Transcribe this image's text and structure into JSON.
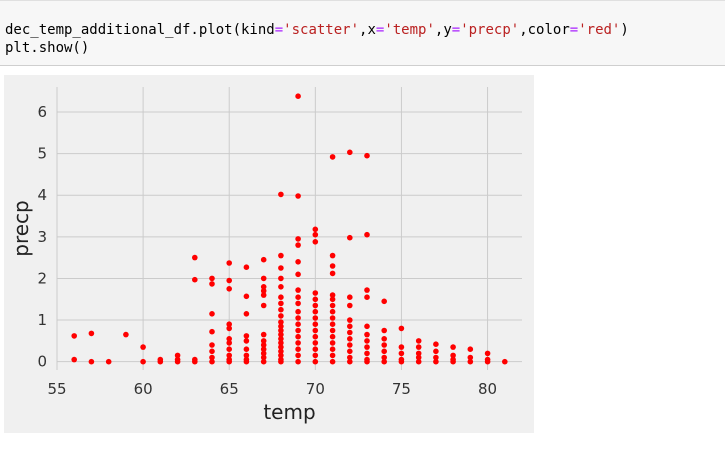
{
  "code_cell": {
    "line1_parts": [
      {
        "text": "dec_temp_additional_df.plot(kind",
        "cls": ""
      },
      {
        "text": "=",
        "cls": "op"
      },
      {
        "text": "'scatter'",
        "cls": "str"
      },
      {
        "text": ",x",
        "cls": ""
      },
      {
        "text": "=",
        "cls": "op"
      },
      {
        "text": "'temp'",
        "cls": "str"
      },
      {
        "text": ",y",
        "cls": ""
      },
      {
        "text": "=",
        "cls": "op"
      },
      {
        "text": "'precp'",
        "cls": "str"
      },
      {
        "text": ",color",
        "cls": ""
      },
      {
        "text": "=",
        "cls": "op"
      },
      {
        "text": "'red'",
        "cls": "str"
      },
      {
        "text": ")",
        "cls": ""
      }
    ],
    "line2": "plt.show()"
  },
  "colors": {
    "point": "#ff0000",
    "plot_bg": "#f0f0f0",
    "grid": "#cbcbcb"
  },
  "chart_data": {
    "type": "scatter",
    "title": "",
    "xlabel": "temp",
    "ylabel": "precp",
    "xlim": [
      55,
      82
    ],
    "ylim": [
      -0.2,
      6.6
    ],
    "xticks": [
      55,
      60,
      65,
      70,
      75,
      80
    ],
    "yticks": [
      0,
      1,
      2,
      3,
      4,
      5,
      6
    ],
    "grid": true,
    "legend": "none",
    "series": [
      {
        "points": [
          [
            56,
            0.62
          ],
          [
            56,
            0.05
          ],
          [
            57,
            0.68
          ],
          [
            57,
            0.0
          ],
          [
            58,
            0.0
          ],
          [
            59,
            0.65
          ],
          [
            60,
            0.35
          ],
          [
            60,
            0.0
          ],
          [
            61,
            0.05
          ],
          [
            61,
            0.0
          ],
          [
            62,
            0.15
          ],
          [
            62,
            0.05
          ],
          [
            62,
            0.0
          ],
          [
            63,
            2.5
          ],
          [
            63,
            1.97
          ],
          [
            63,
            0.05
          ],
          [
            63,
            0.0
          ],
          [
            64,
            2.0
          ],
          [
            64,
            1.87
          ],
          [
            64,
            1.15
          ],
          [
            64,
            0.72
          ],
          [
            64,
            0.4
          ],
          [
            64,
            0.25
          ],
          [
            64,
            0.1
          ],
          [
            64,
            0.0
          ],
          [
            65,
            2.37
          ],
          [
            65,
            1.95
          ],
          [
            65,
            1.75
          ],
          [
            65,
            0.9
          ],
          [
            65,
            0.8
          ],
          [
            65,
            0.55
          ],
          [
            65,
            0.45
          ],
          [
            65,
            0.3
          ],
          [
            65,
            0.15
          ],
          [
            65,
            0.05
          ],
          [
            65,
            0.0
          ],
          [
            66,
            2.27
          ],
          [
            66,
            1.57
          ],
          [
            66,
            1.15
          ],
          [
            66,
            0.62
          ],
          [
            66,
            0.5
          ],
          [
            66,
            0.3
          ],
          [
            66,
            0.15
          ],
          [
            66,
            0.05
          ],
          [
            66,
            0.0
          ],
          [
            67,
            2.45
          ],
          [
            67,
            2.0
          ],
          [
            67,
            1.8
          ],
          [
            67,
            1.7
          ],
          [
            67,
            1.6
          ],
          [
            67,
            1.35
          ],
          [
            67,
            0.65
          ],
          [
            67,
            0.5
          ],
          [
            67,
            0.4
          ],
          [
            67,
            0.3
          ],
          [
            67,
            0.2
          ],
          [
            67,
            0.1
          ],
          [
            67,
            0.0
          ],
          [
            68,
            4.02
          ],
          [
            68,
            2.55
          ],
          [
            68,
            2.25
          ],
          [
            68,
            2.0
          ],
          [
            68,
            1.8
          ],
          [
            68,
            1.55
          ],
          [
            68,
            1.4
          ],
          [
            68,
            1.25
          ],
          [
            68,
            1.1
          ],
          [
            68,
            0.95
          ],
          [
            68,
            0.85
          ],
          [
            68,
            0.75
          ],
          [
            68,
            0.65
          ],
          [
            68,
            0.55
          ],
          [
            68,
            0.45
          ],
          [
            68,
            0.35
          ],
          [
            68,
            0.25
          ],
          [
            68,
            0.15
          ],
          [
            68,
            0.05
          ],
          [
            68,
            0.0
          ],
          [
            69,
            6.38
          ],
          [
            69,
            3.98
          ],
          [
            69,
            2.95
          ],
          [
            69,
            2.8
          ],
          [
            69,
            2.4
          ],
          [
            69,
            2.1
          ],
          [
            69,
            1.72
          ],
          [
            69,
            1.55
          ],
          [
            69,
            1.4
          ],
          [
            69,
            1.2
          ],
          [
            69,
            1.05
          ],
          [
            69,
            0.9
          ],
          [
            69,
            0.75
          ],
          [
            69,
            0.6
          ],
          [
            69,
            0.45
          ],
          [
            69,
            0.3
          ],
          [
            69,
            0.15
          ],
          [
            69,
            0.0
          ],
          [
            70,
            3.18
          ],
          [
            70,
            3.05
          ],
          [
            70,
            2.88
          ],
          [
            70,
            1.65
          ],
          [
            70,
            1.5
          ],
          [
            70,
            1.35
          ],
          [
            70,
            1.2
          ],
          [
            70,
            1.05
          ],
          [
            70,
            0.9
          ],
          [
            70,
            0.75
          ],
          [
            70,
            0.6
          ],
          [
            70,
            0.45
          ],
          [
            70,
            0.3
          ],
          [
            70,
            0.15
          ],
          [
            70,
            0.0
          ],
          [
            71,
            4.92
          ],
          [
            71,
            2.55
          ],
          [
            71,
            2.3
          ],
          [
            71,
            2.12
          ],
          [
            71,
            1.6
          ],
          [
            71,
            1.5
          ],
          [
            71,
            1.35
          ],
          [
            71,
            1.2
          ],
          [
            71,
            1.05
          ],
          [
            71,
            0.9
          ],
          [
            71,
            0.75
          ],
          [
            71,
            0.6
          ],
          [
            71,
            0.45
          ],
          [
            71,
            0.3
          ],
          [
            71,
            0.15
          ],
          [
            71,
            0.0
          ],
          [
            72,
            5.03
          ],
          [
            72,
            2.98
          ],
          [
            72,
            1.55
          ],
          [
            72,
            1.35
          ],
          [
            72,
            1.0
          ],
          [
            72,
            0.85
          ],
          [
            72,
            0.7
          ],
          [
            72,
            0.55
          ],
          [
            72,
            0.4
          ],
          [
            72,
            0.25
          ],
          [
            72,
            0.1
          ],
          [
            72,
            0.0
          ],
          [
            73,
            4.95
          ],
          [
            73,
            3.05
          ],
          [
            73,
            1.72
          ],
          [
            73,
            1.55
          ],
          [
            73,
            0.85
          ],
          [
            73,
            0.65
          ],
          [
            73,
            0.5
          ],
          [
            73,
            0.35
          ],
          [
            73,
            0.2
          ],
          [
            73,
            0.05
          ],
          [
            73,
            0.0
          ],
          [
            74,
            1.45
          ],
          [
            74,
            0.75
          ],
          [
            74,
            0.55
          ],
          [
            74,
            0.4
          ],
          [
            74,
            0.25
          ],
          [
            74,
            0.1
          ],
          [
            74,
            0.0
          ],
          [
            75,
            0.8
          ],
          [
            75,
            0.35
          ],
          [
            75,
            0.2
          ],
          [
            75,
            0.05
          ],
          [
            75,
            0.0
          ],
          [
            76,
            0.5
          ],
          [
            76,
            0.35
          ],
          [
            76,
            0.2
          ],
          [
            76,
            0.1
          ],
          [
            76,
            0.0
          ],
          [
            77,
            0.42
          ],
          [
            77,
            0.25
          ],
          [
            77,
            0.1
          ],
          [
            77,
            0.0
          ],
          [
            78,
            0.35
          ],
          [
            78,
            0.15
          ],
          [
            78,
            0.05
          ],
          [
            78,
            0.0
          ],
          [
            79,
            0.3
          ],
          [
            79,
            0.1
          ],
          [
            79,
            0.0
          ],
          [
            80,
            0.2
          ],
          [
            80,
            0.05
          ],
          [
            80,
            0.0
          ],
          [
            81,
            0.0
          ]
        ]
      }
    ]
  }
}
